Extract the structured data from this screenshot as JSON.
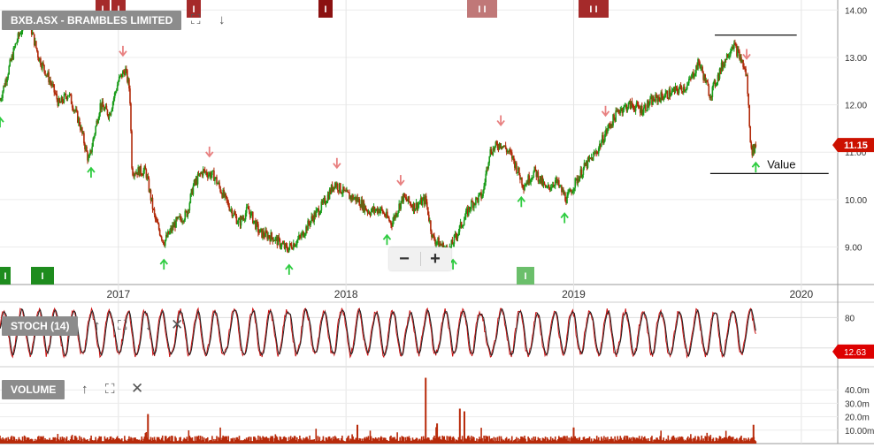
{
  "chart_data": [
    {
      "type": "candlestick",
      "title": "BXB.ASX - BRAMBLES LIMITED",
      "x_axis": {
        "ticks": [
          "2017",
          "2018",
          "2019",
          "2020"
        ],
        "tick_dates": [
          2017.0,
          2018.0,
          2019.0,
          2020.0
        ],
        "range": [
          2016.48,
          2020.16
        ]
      },
      "y_axis": {
        "ticks": [
          "14.00",
          "13.00",
          "12.00",
          "11.00",
          "10.00",
          "9.00"
        ],
        "range": [
          8.3,
          14.1
        ],
        "position": "right"
      },
      "last_price_label": "11.15",
      "last_price": 11.15,
      "annotation": "Value",
      "colors": {
        "up": "#1a9c1a",
        "down": "#b12a0a",
        "up_arrow": "#2ecc40",
        "down_arrow": "#e88080",
        "price_tag": "#cc1100"
      },
      "close_path": [
        [
          2016.48,
          12.1
        ],
        [
          2016.55,
          13.3
        ],
        [
          2016.6,
          13.9
        ],
        [
          2016.65,
          13.0
        ],
        [
          2016.7,
          12.5
        ],
        [
          2016.74,
          12.0
        ],
        [
          2016.78,
          12.25
        ],
        [
          2016.83,
          11.6
        ],
        [
          2016.87,
          10.8
        ],
        [
          2016.92,
          12.0
        ],
        [
          2016.96,
          11.8
        ],
        [
          2017.0,
          12.5
        ],
        [
          2017.03,
          12.75
        ],
        [
          2017.05,
          12.3
        ],
        [
          2017.06,
          10.6
        ],
        [
          2017.12,
          10.6
        ],
        [
          2017.16,
          9.6
        ],
        [
          2017.2,
          9.1
        ],
        [
          2017.25,
          9.5
        ],
        [
          2017.3,
          9.7
        ],
        [
          2017.33,
          10.3
        ],
        [
          2017.37,
          10.6
        ],
        [
          2017.42,
          10.5
        ],
        [
          2017.47,
          10.0
        ],
        [
          2017.53,
          9.5
        ],
        [
          2017.57,
          9.8
        ],
        [
          2017.62,
          9.3
        ],
        [
          2017.68,
          9.2
        ],
        [
          2017.74,
          8.95
        ],
        [
          2017.8,
          9.2
        ],
        [
          2017.85,
          9.6
        ],
        [
          2017.9,
          9.9
        ],
        [
          2017.95,
          10.35
        ],
        [
          2018.0,
          10.1
        ],
        [
          2018.05,
          10.0
        ],
        [
          2018.1,
          9.75
        ],
        [
          2018.15,
          9.8
        ],
        [
          2018.2,
          9.5
        ],
        [
          2018.25,
          10.05
        ],
        [
          2018.3,
          9.85
        ],
        [
          2018.35,
          10.0
        ],
        [
          2018.38,
          9.2
        ],
        [
          2018.45,
          8.9
        ],
        [
          2018.5,
          9.4
        ],
        [
          2018.55,
          9.9
        ],
        [
          2018.6,
          10.1
        ],
        [
          2018.63,
          11.0
        ],
        [
          2018.68,
          11.2
        ],
        [
          2018.73,
          10.9
        ],
        [
          2018.78,
          10.3
        ],
        [
          2018.83,
          10.6
        ],
        [
          2018.88,
          10.2
        ],
        [
          2018.92,
          10.4
        ],
        [
          2018.97,
          10.0
        ],
        [
          2019.0,
          10.3
        ],
        [
          2019.05,
          10.7
        ],
        [
          2019.1,
          11.0
        ],
        [
          2019.15,
          11.5
        ],
        [
          2019.2,
          11.9
        ],
        [
          2019.25,
          12.0
        ],
        [
          2019.3,
          11.9
        ],
        [
          2019.35,
          12.1
        ],
        [
          2019.4,
          12.2
        ],
        [
          2019.45,
          12.3
        ],
        [
          2019.5,
          12.4
        ],
        [
          2019.55,
          12.9
        ],
        [
          2019.6,
          12.2
        ],
        [
          2019.65,
          12.8
        ],
        [
          2019.7,
          13.3
        ],
        [
          2019.74,
          12.9
        ],
        [
          2019.76,
          12.6
        ],
        [
          2019.78,
          11.0
        ],
        [
          2019.8,
          11.15
        ]
      ],
      "up_markers": [
        2016.48,
        2016.88,
        2017.2,
        2017.75,
        2018.18,
        2018.47,
        2018.77,
        2018.96,
        2019.8
      ],
      "down_markers": [
        2017.02,
        2017.4,
        2017.96,
        2018.24,
        2018.68,
        2019.14,
        2019.76
      ],
      "resistance_line": {
        "x": [
          2019.62,
          2019.98
        ],
        "y": 13.47
      },
      "value_line": {
        "x": [
          2019.6,
          2020.12
        ],
        "y": 10.55
      }
    },
    {
      "type": "line",
      "title": "STOCH (14)",
      "y_axis": {
        "ticks": [
          "80"
        ],
        "range": [
          -5,
          100
        ]
      },
      "last_value_label": "12.63",
      "series": [
        {
          "color": "#cc1111"
        },
        {
          "color": "#222222"
        }
      ]
    },
    {
      "type": "bar",
      "title": "VOLUME",
      "y_axis": {
        "ticks": [
          "40.0m",
          "30.0m",
          "20.0m",
          "10.00m"
        ],
        "range": [
          0,
          50
        ]
      },
      "color": "#b82a0a",
      "spikes": [
        [
          2018.35,
          49.0
        ],
        [
          2018.5,
          26.0
        ],
        [
          2018.52,
          24.0
        ],
        [
          2017.13,
          22.0
        ],
        [
          2018.4,
          15.0
        ],
        [
          2019.0,
          12.0
        ],
        [
          2019.79,
          14.0
        ],
        [
          2018.05,
          14.0
        ]
      ]
    }
  ],
  "top_markers": [
    {
      "label": "I",
      "color": "#a52a2a"
    },
    {
      "label": "I",
      "color": "#a52a2a"
    },
    {
      "label": "I",
      "color": "#a52a2a"
    },
    {
      "label": "I",
      "color": "#8b1111"
    },
    {
      "label": "I I",
      "color": "#c07878"
    },
    {
      "label": "I I",
      "color": "#a52a2a"
    }
  ],
  "bottom_markers": [
    {
      "label": "I",
      "color": "#1e8c1e"
    },
    {
      "label": "I",
      "color": "#1e8c1e"
    },
    {
      "label": "I",
      "color": "#6bbf6b"
    }
  ],
  "controls": {
    "zoom_out": "−",
    "zoom_in": "+",
    "expand_icon": "⛶",
    "down_icon": "↓",
    "up_icon": "↑",
    "close_icon": "✕"
  }
}
